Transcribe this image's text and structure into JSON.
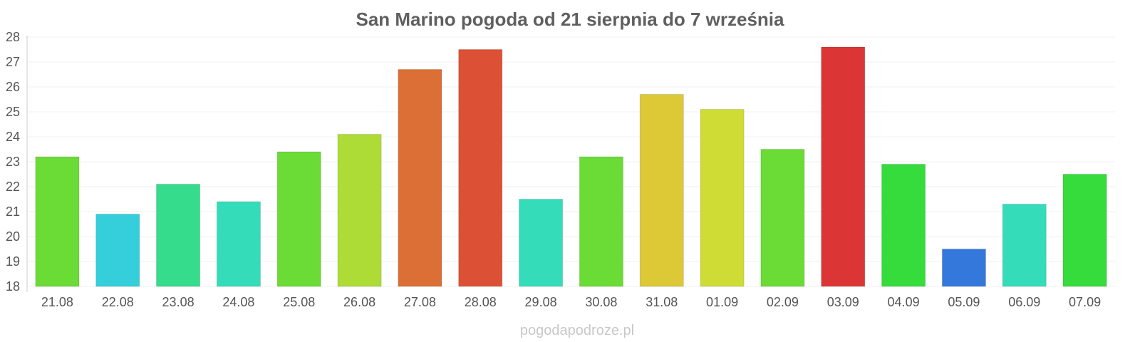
{
  "chart_data": {
    "type": "bar",
    "title": "San Marino pogoda od 21 sierpnia do 7 września",
    "xlabel": "",
    "ylabel": "",
    "ylim": [
      18,
      28
    ],
    "yticks": [
      18,
      19,
      20,
      21,
      22,
      23,
      24,
      25,
      26,
      27,
      28
    ],
    "grid": true,
    "categories": [
      "21.08",
      "22.08",
      "23.08",
      "24.08",
      "25.08",
      "26.08",
      "27.08",
      "28.08",
      "29.08",
      "30.08",
      "31.08",
      "01.09",
      "02.09",
      "03.09",
      "04.09",
      "05.09",
      "06.09",
      "07.09"
    ],
    "values": [
      23.2,
      20.9,
      22.1,
      21.4,
      23.4,
      24.1,
      26.7,
      27.5,
      21.5,
      23.2,
      25.7,
      25.1,
      23.5,
      27.6,
      22.9,
      19.5,
      21.3,
      22.5
    ],
    "colors": [
      "#6adc35",
      "#35cfdc",
      "#35dc8b",
      "#35dcb9",
      "#6adc35",
      "#acdc35",
      "#dc6f35",
      "#dc5035",
      "#35dcb9",
      "#6adc35",
      "#dcc935",
      "#cfdc35",
      "#6adc35",
      "#dc3535",
      "#35dc3b",
      "#3578dc",
      "#35dcb9",
      "#35dc3b"
    ]
  },
  "watermark": "pogodapodroze.pl"
}
